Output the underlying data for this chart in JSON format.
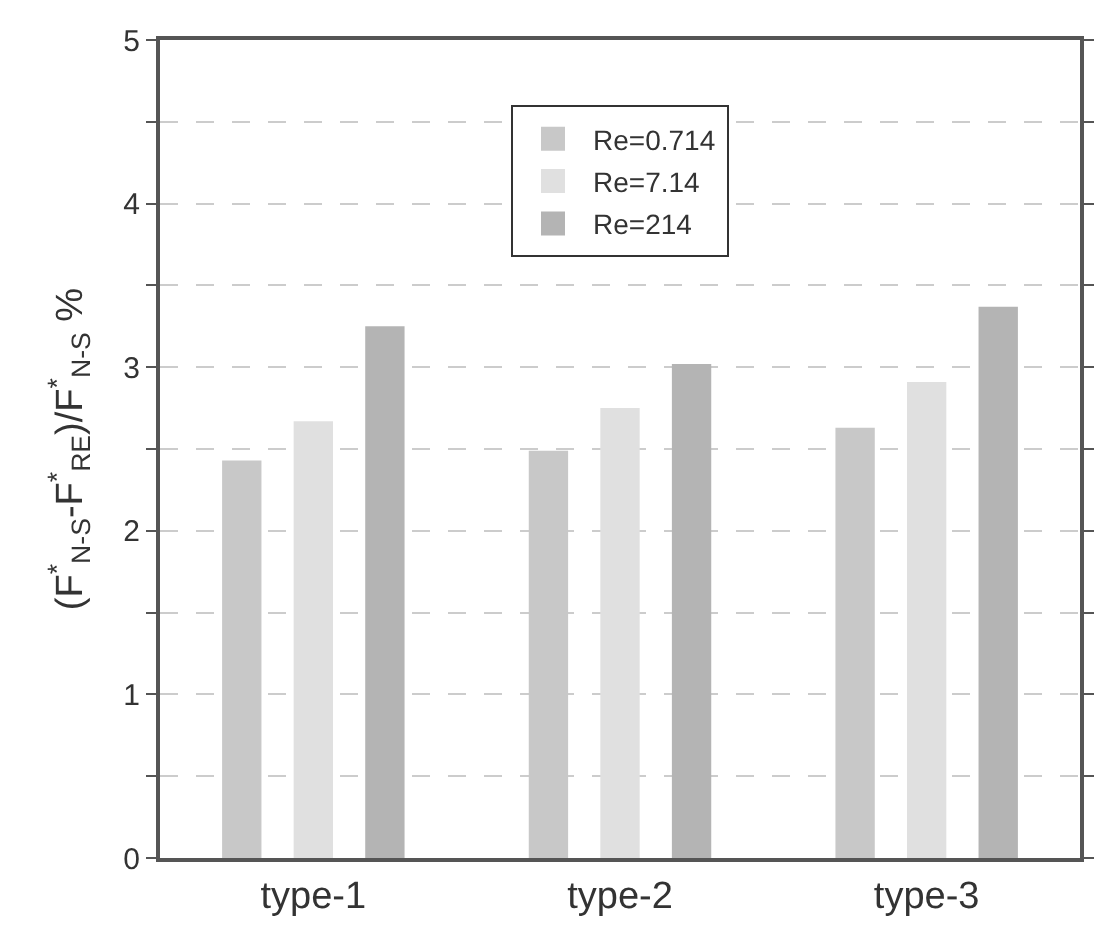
{
  "chart_data": {
    "type": "bar",
    "ylabel": "(F$^{*}$$_{N-S}$-F$^{*}$$_{RE}$)/F$^{*}$$_{N-S}$ %",
    "categories": [
      "type-1",
      "type-2",
      "type-3"
    ],
    "series": [
      {
        "name": "Re=0.714",
        "color": "#c8c8c8",
        "values": [
          2.43,
          2.49,
          2.63
        ]
      },
      {
        "name": "Re=7.14",
        "color": "#e0e0e0",
        "values": [
          2.67,
          2.75,
          2.91
        ]
      },
      {
        "name": "Re=214",
        "color": "#b4b4b4",
        "values": [
          3.25,
          3.02,
          3.37
        ]
      }
    ],
    "ylim": [
      0,
      5
    ],
    "yticks": [
      0,
      {
        "value": 0.5,
        "label": null
      },
      1,
      {
        "value": 1.5,
        "label": null
      },
      2,
      {
        "value": 2.5,
        "label": null
      },
      3,
      {
        "value": 3.5,
        "label": null
      },
      4,
      {
        "value": 4.5,
        "label": null
      },
      5
    ],
    "grid": "y",
    "legend": "top"
  }
}
